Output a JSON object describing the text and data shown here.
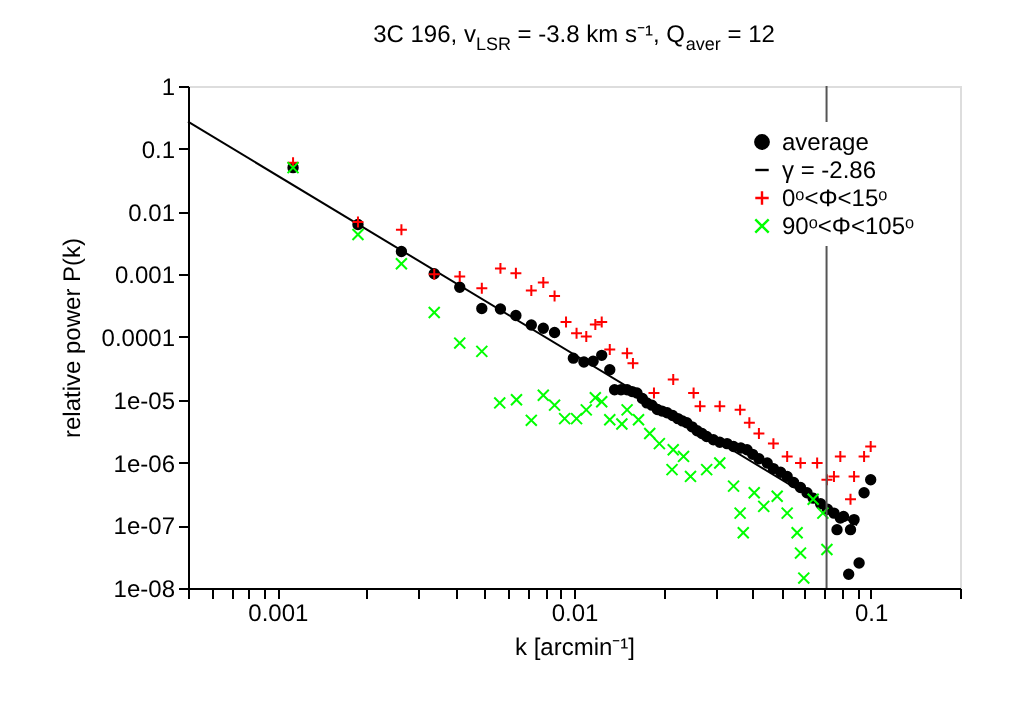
{
  "chart_data": {
    "type": "scatter",
    "title": "3C 196, v$_{LSR}$ = -3.8 km s⁻¹, Q$_{aver}$ = 12",
    "xlabel": "k [arcmin⁻¹]",
    "ylabel": "relative power P(k)",
    "log": "xy",
    "legend": "top right",
    "grid": false,
    "xlim": [
      0.0005,
      0.2
    ],
    "ylim": [
      1e-08,
      1
    ],
    "xticks": [
      {
        "value": 0.0005,
        "label": null
      },
      {
        "value": 0.0006,
        "label": null
      },
      {
        "value": 0.0007,
        "label": null
      },
      {
        "value": 0.0008,
        "label": null
      },
      {
        "value": 0.0009,
        "label": null
      },
      0.001,
      {
        "value": 0.002,
        "label": null
      },
      {
        "value": 0.003,
        "label": null
      },
      {
        "value": 0.004,
        "label": null
      },
      {
        "value": 0.005,
        "label": null
      },
      {
        "value": 0.006,
        "label": null
      },
      {
        "value": 0.007,
        "label": null
      },
      {
        "value": 0.008,
        "label": null
      },
      {
        "value": 0.009,
        "label": null
      },
      0.01,
      {
        "value": 0.02,
        "label": null
      },
      {
        "value": 0.03,
        "label": null
      },
      {
        "value": 0.04,
        "label": null
      },
      {
        "value": 0.05,
        "label": null
      },
      {
        "value": 0.06,
        "label": null
      },
      {
        "value": 0.07,
        "label": null
      },
      {
        "value": 0.08,
        "label": null
      },
      {
        "value": 0.09,
        "label": null
      },
      0.1,
      {
        "value": 0.2,
        "label": null
      }
    ],
    "yticks": [
      {
        "value": 1e-08,
        "label": "1e-08"
      },
      {
        "value": 1e-07,
        "label": "1e-07"
      },
      {
        "value": 1e-06,
        "label": "1e-06"
      },
      {
        "value": 1e-05,
        "label": "1e-05"
      },
      0.0001,
      0.001,
      0.01,
      0.1,
      1
    ],
    "ref_lines": [
      {
        "axis": "x",
        "value": 0.071,
        "color": "#555555"
      }
    ],
    "series": [
      {
        "name": "average",
        "marker": "circle",
        "color": "#000000",
        "x": [
          0.00113,
          0.00187,
          0.00262,
          0.00338,
          0.00412,
          0.00489,
          0.00565,
          0.00637,
          0.00718,
          0.00788,
          0.0086,
          0.00995,
          0.0108,
          0.0116,
          0.0124,
          0.0132,
          0.0137,
          0.0144,
          0.0151,
          0.0157,
          0.0163,
          0.017,
          0.0176,
          0.0183,
          0.0191,
          0.0198,
          0.0206,
          0.0215,
          0.0224,
          0.0232,
          0.024,
          0.025,
          0.026,
          0.027,
          0.028,
          0.0295,
          0.031,
          0.0328,
          0.0345,
          0.0365,
          0.0383,
          0.04,
          0.042,
          0.0448,
          0.047,
          0.0497,
          0.0523,
          0.055,
          0.058,
          0.061,
          0.064,
          0.0678,
          0.0715,
          0.0752,
          0.077,
          0.079,
          0.081,
          0.0843,
          0.0855,
          0.0879,
          0.0914,
          0.095,
          0.1
        ],
        "values": [
          0.05,
          0.0062,
          0.0023,
          0.00102,
          0.00062,
          0.000285,
          0.00028,
          0.00022,
          0.000155,
          0.000138,
          0.000118,
          4.6e-05,
          4e-05,
          4.1e-05,
          5.1e-05,
          3e-05,
          1.44e-05,
          1.44e-05,
          1.44e-05,
          1.35e-05,
          1.28e-05,
          1.05e-05,
          8.9e-06,
          8.2e-06,
          7e-06,
          6.6e-06,
          6.2e-06,
          5.6e-06,
          5e-06,
          4.6e-06,
          4.3e-06,
          3.7e-06,
          3.2e-06,
          2.9e-06,
          2.6e-06,
          2.3e-06,
          2.1e-06,
          2e-06,
          1.8e-06,
          1.7e-06,
          1.6e-06,
          1.35e-06,
          1.15e-06,
          9.8e-07,
          8e-07,
          7e-07,
          6e-07,
          4.8e-07,
          4e-07,
          3.3e-07,
          2.7e-07,
          2.2e-07,
          1.8e-07,
          1.56e-07,
          8.5e-08,
          1.3e-07,
          1.38e-07,
          1.66e-08,
          8.5e-08,
          1.23e-07,
          2.5e-08,
          3.3e-07,
          5.3e-07
        ]
      },
      {
        "name": "γ = -2.86",
        "type": "line",
        "color": "#000000",
        "x": [
          0.0005,
          0.09
        ],
        "values": [
          0.27,
          1e-07
        ]
      },
      {
        "name": "0ᵒ<Φ<15ᵒ",
        "marker": "cross",
        "color": "#ff0000",
        "x": [
          0.00113,
          0.00187,
          0.00262,
          0.00338,
          0.00412,
          0.00489,
          0.00565,
          0.00637,
          0.00718,
          0.00788,
          0.0086,
          0.0094,
          0.0102,
          0.011,
          0.0118,
          0.0124,
          0.0132,
          0.0151,
          0.0158,
          0.0186,
          0.0216,
          0.0253,
          0.0266,
          0.031,
          0.0363,
          0.039,
          0.042,
          0.047,
          0.0523,
          0.058,
          0.066,
          0.0712,
          0.0752,
          0.079,
          0.0855,
          0.0879,
          0.095,
          0.1
        ],
        "values": [
          0.06,
          0.0068,
          0.0051,
          0.001,
          0.00092,
          0.0006,
          0.00124,
          0.00104,
          0.00055,
          0.00074,
          0.00045,
          0.000174,
          0.000115,
          0.000102,
          0.000158,
          0.000174,
          6.3e-05,
          5.5e-05,
          3.8e-05,
          1.28e-05,
          2.1e-05,
          1.28e-05,
          7.9e-06,
          7.9e-06,
          6.9e-06,
          4.3e-06,
          2.9e-06,
          2e-06,
          1.25e-06,
          9.8e-07,
          9.8e-07,
          5.3e-07,
          6e-07,
          1.25e-06,
          2.6e-07,
          6e-07,
          1.25e-06,
          1.8e-06
        ]
      },
      {
        "name": "90ᵒ<Φ<105ᵒ",
        "marker": "x",
        "color": "#00ff00",
        "x": [
          0.00113,
          0.00187,
          0.00262,
          0.00338,
          0.00412,
          0.00489,
          0.00562,
          0.0064,
          0.00718,
          0.00788,
          0.0086,
          0.0093,
          0.0102,
          0.011,
          0.0118,
          0.0124,
          0.0132,
          0.0145,
          0.0151,
          0.0165,
          0.018,
          0.0194,
          0.0216,
          0.0214,
          0.0234,
          0.0247,
          0.028,
          0.031,
          0.0345,
          0.0363,
          0.0372,
          0.0405,
          0.0436,
          0.0484,
          0.0523,
          0.0565,
          0.058,
          0.0595,
          0.064,
          0.069,
          0.0712
        ],
        "values": [
          0.05,
          0.0043,
          0.00147,
          0.000246,
          8e-05,
          5.9e-05,
          8.9e-06,
          1e-05,
          4.7e-06,
          1.18e-05,
          8.2e-06,
          5e-06,
          5e-06,
          6.9e-06,
          1.08e-05,
          9.3e-06,
          4.8e-06,
          4.1e-06,
          6.9e-06,
          4.8e-06,
          2.9e-06,
          2e-06,
          1.6e-06,
          7.7e-07,
          1.25e-06,
          6e-07,
          7.7e-07,
          9.8e-07,
          4.2e-07,
          1.56e-07,
          7.6e-08,
          3.3e-07,
          2e-07,
          2.9e-07,
          1.56e-07,
          7.6e-08,
          3.6e-08,
          1.44e-08,
          2.6e-07,
          1.56e-07,
          4.1e-08
        ]
      }
    ]
  }
}
